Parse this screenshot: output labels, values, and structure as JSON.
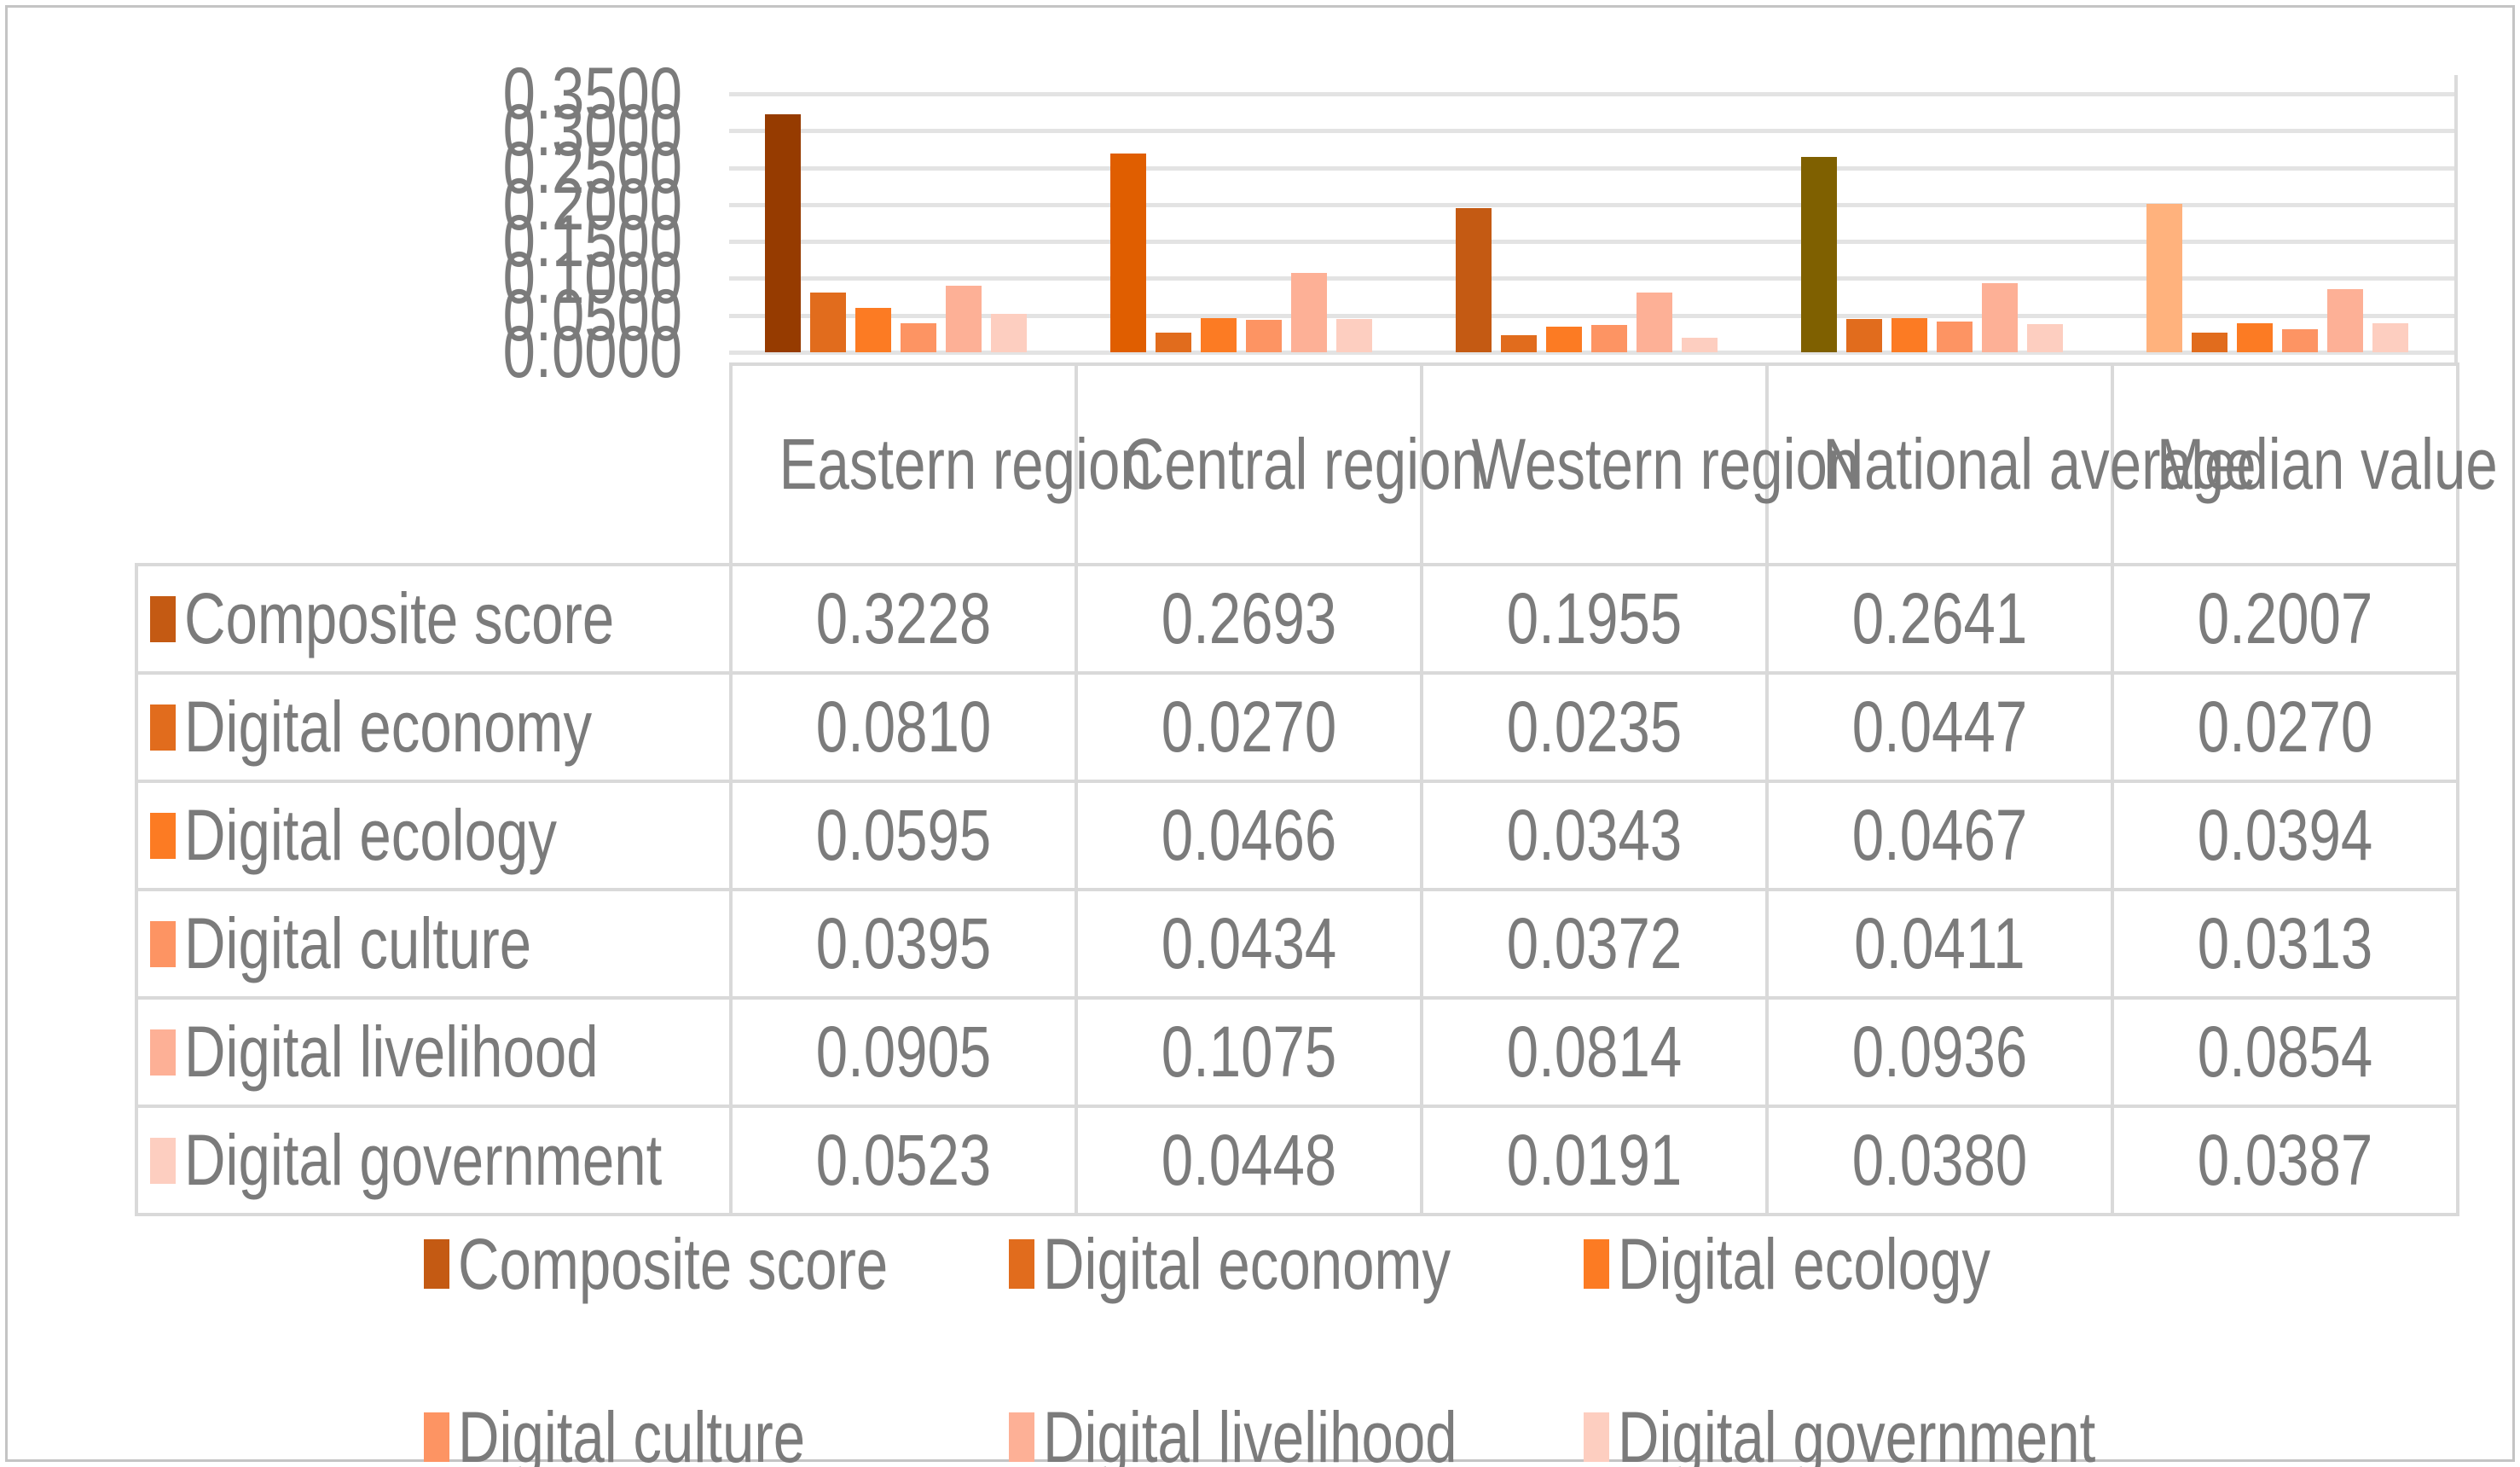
{
  "chart_data": {
    "type": "bar",
    "title": "",
    "categories": [
      "Eastern region",
      "Central region",
      "Western region",
      "National average",
      "Median value"
    ],
    "series": [
      {
        "name": "Composite score",
        "values": [
          0.3228,
          0.2693,
          0.1955,
          0.2641,
          0.2007
        ]
      },
      {
        "name": "Digital economy",
        "values": [
          0.081,
          0.027,
          0.0235,
          0.0447,
          0.027
        ]
      },
      {
        "name": "Digital ecology",
        "values": [
          0.0595,
          0.0466,
          0.0343,
          0.0467,
          0.0394
        ]
      },
      {
        "name": "Digital culture",
        "values": [
          0.0395,
          0.0434,
          0.0372,
          0.0411,
          0.0313
        ]
      },
      {
        "name": "Digital livelihood",
        "values": [
          0.0905,
          0.1075,
          0.0814,
          0.0936,
          0.0854
        ]
      },
      {
        "name": "Digital government",
        "values": [
          0.0523,
          0.0448,
          0.0191,
          0.038,
          0.0387
        ]
      }
    ],
    "y_axis": {
      "min": 0.0,
      "max": 0.35,
      "step": 0.05,
      "tick_labels": [
        "0.3500",
        "0.3000",
        "0.2500",
        "0.2000",
        "0.1500",
        "0.1000",
        "0.0500",
        "0.0000"
      ]
    },
    "grid": true,
    "legend_position": "bottom"
  },
  "table": {
    "column_headers": [
      "Eastern region",
      "Central region",
      "Western region",
      "National average",
      "Median value"
    ],
    "rows": [
      {
        "label": "Composite score",
        "values": [
          "0.3228",
          "0.2693",
          "0.1955",
          "0.2641",
          "0.2007"
        ]
      },
      {
        "label": "Digital economy",
        "values": [
          "0.0810",
          "0.0270",
          "0.0235",
          "0.0447",
          "0.0270"
        ]
      },
      {
        "label": "Digital ecology",
        "values": [
          "0.0595",
          "0.0466",
          "0.0343",
          "0.0467",
          "0.0394"
        ]
      },
      {
        "label": "Digital culture",
        "values": [
          "0.0395",
          "0.0434",
          "0.0372",
          "0.0411",
          "0.0313"
        ]
      },
      {
        "label": "Digital livelihood",
        "values": [
          "0.0905",
          "0.1075",
          "0.0814",
          "0.0936",
          "0.0854"
        ]
      },
      {
        "label": "Digital government",
        "values": [
          "0.0523",
          "0.0448",
          "0.0191",
          "0.0380",
          "0.0387"
        ]
      }
    ]
  },
  "legend": {
    "rows": [
      [
        "Composite score",
        "Digital economy",
        "Digital ecology"
      ],
      [
        "Digital culture",
        "Digital livelihood",
        "Digital government"
      ]
    ]
  },
  "colors": {
    "text": "#7b7b7b",
    "gridline": "#e3e3e3",
    "table_border": "#d9d9d9",
    "composite_bar_by_category": [
      "#963B00",
      "#E05E00",
      "#C45A13",
      "#7F6000",
      "#FFB27D"
    ],
    "series_swatches": {
      "Composite score": "#C45A13",
      "Digital economy": "#E16C1D",
      "Digital ecology": "#FC7B23",
      "Digital culture": "#FD9463",
      "Digital livelihood": "#FDB096",
      "Digital government": "#FDCEC0"
    }
  }
}
